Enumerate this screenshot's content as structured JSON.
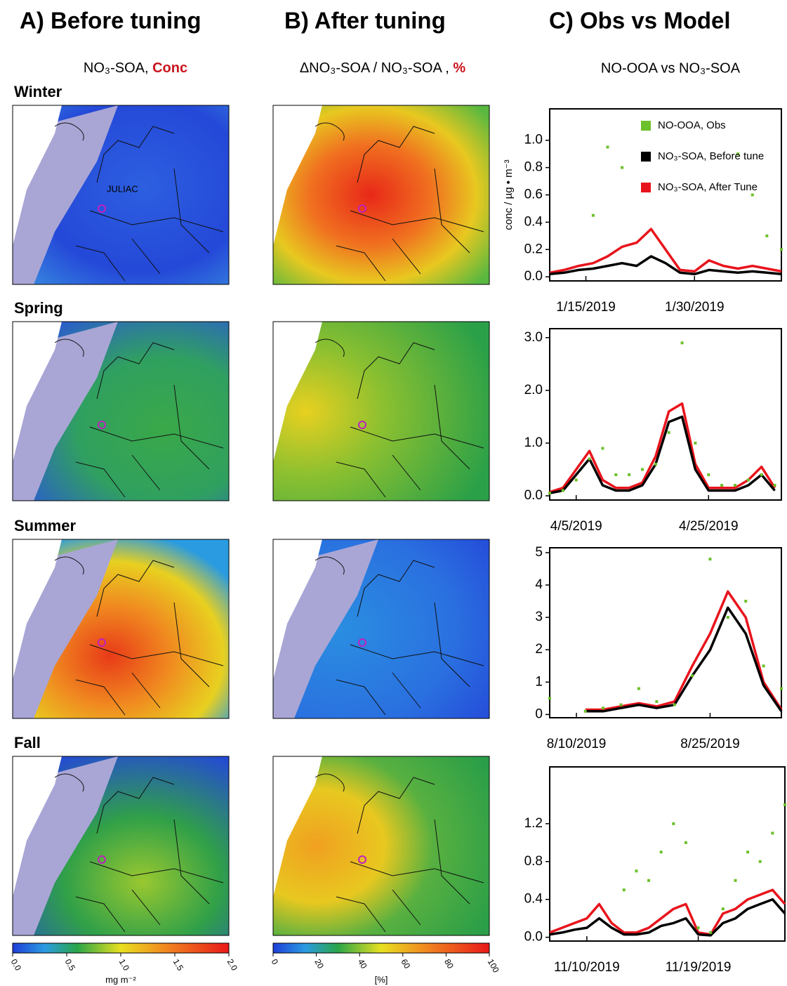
{
  "columns": [
    {
      "heading": "A)  Before tuning",
      "subtitle": "NO₃-SOA, ",
      "highlight": "Conc"
    },
    {
      "heading": "B)  After tuning",
      "subtitle": "ΔNO₃-SOA / NO₃-SOA , ",
      "highlight": "%"
    },
    {
      "heading": "C)  Obs vs Model",
      "subtitle": "NO-OOA vs NO₃-SOA"
    }
  ],
  "rows": [
    "Winter",
    "Spring",
    "Summer",
    "Fall"
  ],
  "site": "JULIAC",
  "colorbars": [
    {
      "lim": [
        0,
        2
      ],
      "ticks": [
        {
          "value": 0,
          "label": "0.0"
        },
        0.5,
        {
          "value": 1,
          "label": "1.0"
        },
        1.5,
        {
          "value": 2,
          "label": "2.0"
        }
      ],
      "label": "mg m⁻²"
    },
    {
      "lim": [
        0,
        100
      ],
      "ticks": [
        0,
        20,
        40,
        60,
        80,
        100
      ],
      "label": "[%]"
    }
  ],
  "chart_data": [
    {
      "type": "line",
      "ylabel": "conc / µg • m⁻³",
      "legend": "upper right",
      "x": [
        "1/10/2019",
        "1/12/2019",
        "1/14/2019",
        "1/16/2019",
        "1/18/2019",
        "1/20/2019",
        "1/22/2019",
        "1/24/2019",
        "1/26/2019",
        "1/28/2019",
        "1/30/2019",
        "2/1/2019",
        "2/3/2019",
        "2/5/2019",
        "2/7/2019",
        "2/9/2019",
        "2/11/2019"
      ],
      "xlim": [
        "1/10/2019",
        "2/11/2019"
      ],
      "xticks": [
        "1/15/2019",
        "1/30/2019"
      ],
      "ylim": [
        -0.03,
        1.23
      ],
      "yticks": [
        {
          "value": 0,
          "label": "0.0"
        },
        0.2,
        0.4,
        0.6,
        0.8,
        {
          "value": 1,
          "label": "1.0"
        }
      ],
      "series": [
        {
          "name": "NO-OOA, Obs",
          "color": "#6cc12a",
          "mode": "markers",
          "values": [
            null,
            null,
            null,
            0.45,
            0.95,
            0.8,
            null,
            null,
            null,
            null,
            null,
            null,
            null,
            0.9,
            0.6,
            0.3,
            0.2
          ]
        },
        {
          "name": "NO₃-SOA, Before tune",
          "color": "#000000",
          "values": [
            0.02,
            0.03,
            0.05,
            0.06,
            0.08,
            0.1,
            0.08,
            0.15,
            0.1,
            0.03,
            0.02,
            0.05,
            0.04,
            0.03,
            0.04,
            0.03,
            0.02
          ]
        },
        {
          "name": "NO₃-SOA, After Tune",
          "color": "#e8141c",
          "values": [
            0.03,
            0.05,
            0.08,
            0.1,
            0.15,
            0.22,
            0.25,
            0.35,
            0.2,
            0.05,
            0.04,
            0.12,
            0.08,
            0.06,
            0.08,
            0.06,
            0.04
          ]
        }
      ]
    },
    {
      "type": "line",
      "x": [
        "4/1/2019",
        "4/3/2019",
        "4/5/2019",
        "4/7/2019",
        "4/9/2019",
        "4/11/2019",
        "4/13/2019",
        "4/15/2019",
        "4/17/2019",
        "4/19/2019",
        "4/21/2019",
        "4/23/2019",
        "4/25/2019",
        "4/27/2019",
        "4/29/2019",
        "5/1/2019",
        "5/3/2019",
        "5/5/2019"
      ],
      "xlim": [
        "4/1/2019",
        "5/6/2019"
      ],
      "xticks": [
        "4/5/2019",
        "4/25/2019"
      ],
      "ylim": [
        -0.08,
        3.17
      ],
      "yticks": [
        {
          "value": 0,
          "label": "0.0"
        },
        {
          "value": 1,
          "label": "1.0"
        },
        {
          "value": 2,
          "label": "2.0"
        },
        {
          "value": 3,
          "label": "3.0"
        }
      ],
      "series": [
        {
          "color": "#6cc12a",
          "mode": "markers",
          "values": [
            0.05,
            0.1,
            0.3,
            0.7,
            0.9,
            0.4,
            0.4,
            0.5,
            0.6,
            1.2,
            2.9,
            1.0,
            0.4,
            0.2,
            0.2,
            0.3,
            0.4,
            0.2
          ]
        },
        {
          "color": "#000000",
          "values": [
            0.05,
            0.1,
            0.4,
            0.7,
            0.2,
            0.1,
            0.1,
            0.2,
            0.6,
            1.4,
            1.5,
            0.5,
            0.1,
            0.1,
            0.1,
            0.2,
            0.4,
            0.1
          ]
        },
        {
          "color": "#e8141c",
          "values": [
            0.07,
            0.15,
            0.5,
            0.85,
            0.3,
            0.15,
            0.15,
            0.25,
            0.75,
            1.6,
            1.75,
            0.6,
            0.15,
            0.15,
            0.15,
            0.3,
            0.55,
            0.15
          ]
        }
      ]
    },
    {
      "type": "line",
      "x": [
        "8/7/2019",
        "8/9/2019",
        "8/11/2019",
        "8/13/2019",
        "8/15/2019",
        "8/17/2019",
        "8/19/2019",
        "8/21/2019",
        "8/23/2019",
        "8/25/2019",
        "8/27/2019",
        "8/29/2019",
        "8/31/2019",
        "9/2/2019"
      ],
      "xlim": [
        "8/7/2019",
        "9/2/2019"
      ],
      "xticks": [
        "8/10/2019",
        "8/25/2019"
      ],
      "ylim": [
        -0.1,
        5.15
      ],
      "yticks": [
        0,
        1,
        2,
        3,
        4,
        5
      ],
      "series": [
        {
          "color": "#6cc12a",
          "mode": "markers",
          "values": [
            0.5,
            null,
            0.1,
            0.2,
            0.3,
            0.8,
            0.4,
            0.3,
            1.2,
            4.8,
            3.0,
            3.5,
            1.5,
            0.8
          ]
        },
        {
          "color": "#000000",
          "values": [
            null,
            null,
            0.1,
            0.1,
            0.2,
            0.3,
            0.2,
            0.3,
            1.2,
            2.0,
            3.3,
            2.5,
            0.9,
            0.1
          ]
        },
        {
          "color": "#e8141c",
          "values": [
            null,
            null,
            0.15,
            0.15,
            0.25,
            0.35,
            0.25,
            0.4,
            1.5,
            2.5,
            3.8,
            3.0,
            1.0,
            0.15
          ]
        }
      ]
    },
    {
      "type": "line",
      "x": [
        "11/7/2019",
        "11/8/2019",
        "11/9/2019",
        "11/10/2019",
        "11/11/2019",
        "11/12/2019",
        "11/13/2019",
        "11/14/2019",
        "11/15/2019",
        "11/16/2019",
        "11/17/2019",
        "11/18/2019",
        "11/19/2019",
        "11/20/2019",
        "11/21/2019",
        "11/22/2019",
        "11/23/2019",
        "11/24/2019",
        "11/25/2019",
        "11/26/2019"
      ],
      "xlim": [
        "11/7/2019",
        "11/26/2019"
      ],
      "xticks": [
        "11/10/2019",
        "11/19/2019"
      ],
      "ylim": [
        -0.04,
        1.8
      ],
      "yticks": [
        {
          "value": 0,
          "label": "0.0"
        },
        0.4,
        0.8,
        1.2
      ],
      "series": [
        {
          "color": "#6cc12a",
          "mode": "markers",
          "values": [
            null,
            null,
            null,
            null,
            null,
            null,
            0.5,
            0.7,
            0.6,
            0.9,
            1.2,
            1.0,
            0.1,
            0.05,
            0.3,
            0.6,
            0.9,
            0.8,
            1.1,
            1.4
          ]
        },
        {
          "color": "#000000",
          "values": [
            0.03,
            0.05,
            0.08,
            0.1,
            0.2,
            0.1,
            0.03,
            0.03,
            0.05,
            0.12,
            0.15,
            0.2,
            0.03,
            0.02,
            0.15,
            0.2,
            0.3,
            0.35,
            0.4,
            0.25
          ]
        },
        {
          "color": "#e8141c",
          "values": [
            0.05,
            0.1,
            0.15,
            0.2,
            0.35,
            0.15,
            0.05,
            0.05,
            0.1,
            0.2,
            0.3,
            0.35,
            0.05,
            0.03,
            0.25,
            0.3,
            0.4,
            0.45,
            0.5,
            0.35
          ]
        }
      ]
    }
  ]
}
